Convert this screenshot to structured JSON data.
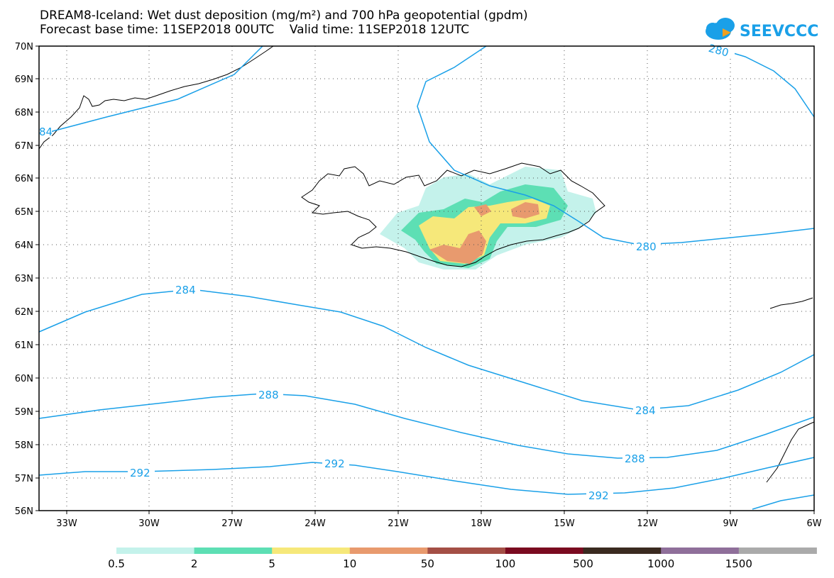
{
  "title_line1": "DREAM8-Iceland: Wet dust deposition (mg/m²) and 700 hPa geopotential (gpdm)",
  "title_line2": "Forecast base time: 11SEP2018 00UTC    Valid time: 11SEP2018 12UTC",
  "logo_text": "SEEVCCC",
  "colors": {
    "contour": "#1aa0e8",
    "coast": "#000000",
    "grid": "#555555"
  },
  "map": {
    "lon_labels": [
      "33W",
      "30W",
      "27W",
      "24W",
      "21W",
      "18W",
      "15W",
      "12W",
      "9W",
      "6W"
    ],
    "lat_labels": [
      "70N",
      "69N",
      "68N",
      "67N",
      "66N",
      "65N",
      "64N",
      "63N",
      "62N",
      "61N",
      "60N",
      "59N",
      "58N",
      "57N",
      "56N"
    ],
    "contour_labels": [
      {
        "id": "c280a",
        "text": "280"
      },
      {
        "id": "c280b",
        "text": "280"
      },
      {
        "id": "c284a",
        "text": "284"
      },
      {
        "id": "c284b",
        "text": "284"
      },
      {
        "id": "c288a",
        "text": "288"
      },
      {
        "id": "c288b",
        "text": "288"
      },
      {
        "id": "c292a",
        "text": "292"
      },
      {
        "id": "c292b",
        "text": "292"
      },
      {
        "id": "c292c",
        "text": "292"
      },
      {
        "id": "c84",
        "text": "84"
      }
    ]
  },
  "legend": {
    "bins": [
      {
        "color": "#c4f2eb"
      },
      {
        "color": "#5ddfb4"
      },
      {
        "color": "#f6e87a"
      },
      {
        "color": "#e89a6e"
      },
      {
        "color": "#a44f46"
      },
      {
        "color": "#7a0a20"
      },
      {
        "color": "#3a2a20"
      },
      {
        "color": "#8f6f9a"
      },
      {
        "color": "#aaaaaa"
      }
    ],
    "labels": [
      "0.5",
      "2",
      "5",
      "10",
      "50",
      "100",
      "500",
      "1000",
      "1500"
    ]
  }
}
